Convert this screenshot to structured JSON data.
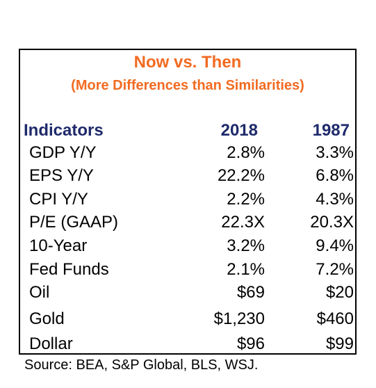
{
  "title": "Now vs. Then",
  "subtitle": "(More Differences than Similarities)",
  "table": {
    "header": {
      "indicator": "Indicators",
      "col_2018": "2018",
      "col_1987": "1987"
    },
    "rows": [
      {
        "label": "GDP Y/Y",
        "v2018": "2.8%",
        "v1987": "3.3%"
      },
      {
        "label": "EPS Y/Y",
        "v2018": "22.2%",
        "v1987": "6.8%"
      },
      {
        "label": "CPI Y/Y",
        "v2018": "2.2%",
        "v1987": "4.3%"
      },
      {
        "label": "P/E (GAAP)",
        "v2018": "22.3X",
        "v1987": "20.3X"
      },
      {
        "label": "10-Year",
        "v2018": "3.2%",
        "v1987": "9.4%"
      },
      {
        "label": "Fed Funds",
        "v2018": "2.1%",
        "v1987": "7.2%"
      },
      {
        "label": "Oil",
        "v2018": "$69",
        "v1987": "$20"
      },
      {
        "label": "Gold",
        "v2018": "$1,230",
        "v1987": "$460"
      },
      {
        "label": "Dollar",
        "v2018": "$96",
        "v1987": "$99"
      }
    ]
  },
  "source": "Source: BEA, S&P Global, BLS, WSJ.",
  "colors": {
    "title": "#f26b21",
    "header": "#1f2a6b",
    "text": "#000000",
    "border": "#000000"
  }
}
